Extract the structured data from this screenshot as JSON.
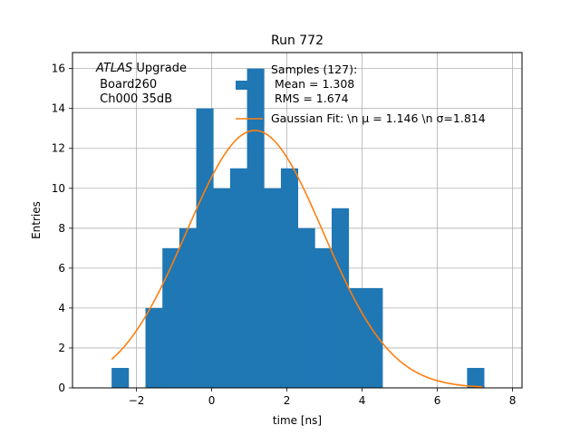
{
  "chart_data": {
    "type": "bar",
    "subtype": "histogram with gaussian fit",
    "title": "Run 772",
    "xlabel": "time [ns]",
    "ylabel": "Entries",
    "xlim": [
      -3.7,
      8.25
    ],
    "ylim": [
      0,
      16.8
    ],
    "grid": true,
    "xticks": [
      -2,
      0,
      2,
      4,
      6,
      8
    ],
    "xtick_labels": [
      "−2",
      "0",
      "2",
      "4",
      "6",
      "8"
    ],
    "yticks": [
      0,
      2,
      4,
      6,
      8,
      10,
      12,
      14,
      16
    ],
    "ytick_labels": [
      "0",
      "2",
      "4",
      "6",
      "8",
      "10",
      "12",
      "14",
      "16"
    ],
    "bar_color": "#1f77b4",
    "fit_color": "#ff7f0e",
    "bins": [
      {
        "x0": -2.66,
        "x1": -2.21,
        "count": 1
      },
      {
        "x0": -1.76,
        "x1": -1.31,
        "count": 4
      },
      {
        "x0": -1.31,
        "x1": -0.86,
        "count": 7
      },
      {
        "x0": -0.86,
        "x1": -0.41,
        "count": 8
      },
      {
        "x0": -0.41,
        "x1": 0.04,
        "count": 14
      },
      {
        "x0": 0.04,
        "x1": 0.49,
        "count": 10
      },
      {
        "x0": 0.49,
        "x1": 0.94,
        "count": 11
      },
      {
        "x0": 0.94,
        "x1": 1.39,
        "count": 16
      },
      {
        "x0": 1.39,
        "x1": 1.84,
        "count": 10
      },
      {
        "x0": 1.84,
        "x1": 2.29,
        "count": 11
      },
      {
        "x0": 2.29,
        "x1": 2.74,
        "count": 8
      },
      {
        "x0": 2.74,
        "x1": 3.19,
        "count": 7
      },
      {
        "x0": 3.19,
        "x1": 3.64,
        "count": 9
      },
      {
        "x0": 3.64,
        "x1": 4.09,
        "count": 5
      },
      {
        "x0": 4.09,
        "x1": 4.54,
        "count": 5
      },
      {
        "x0": 6.79,
        "x1": 7.24,
        "count": 1
      }
    ],
    "fit": {
      "model": "gaussian",
      "mu": 1.146,
      "sigma": 1.814,
      "amplitude": 12.9,
      "x_range": [
        -2.66,
        7.2
      ]
    },
    "annotation_lines": [
      "ATLAS",
      " Upgrade",
      " Board260",
      " Ch000 35dB"
    ],
    "legend": {
      "position": "top-right",
      "hist_lines": [
        "Samples (127):",
        " Mean = 1.308",
        " RMS = 1.674"
      ],
      "fit_label": "Gaussian Fit: \\n μ = 1.146 \\n σ=1.814"
    }
  }
}
